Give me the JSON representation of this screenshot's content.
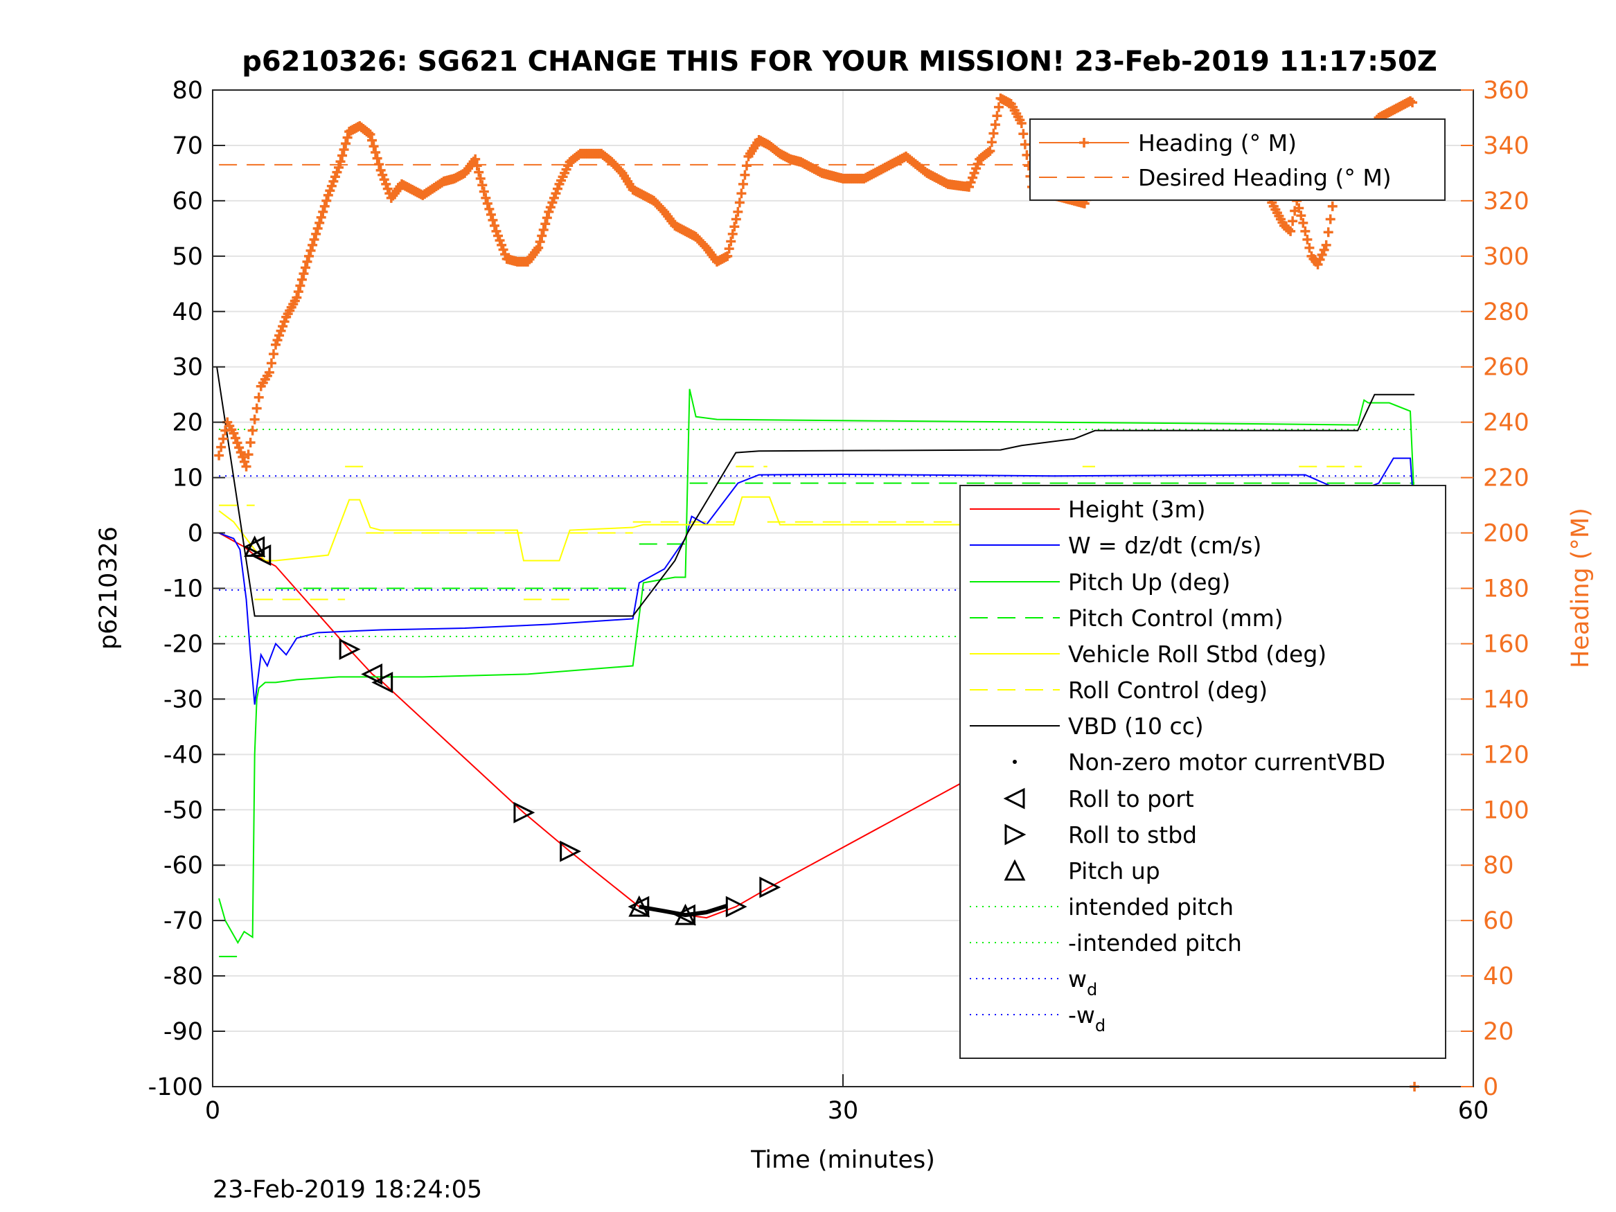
{
  "chart_data": {
    "type": "line",
    "title": "p6210326: SG621 CHANGE THIS FOR YOUR MISSION! 23-Feb-2019 11:17:50Z",
    "footer": "23-Feb-2019 18:24:05",
    "xlabel": "Time (minutes)",
    "ylabel_left": "p6210326",
    "ylabel_right": "Heading (°M)",
    "xlim": [
      0,
      60
    ],
    "ylim_left": [
      -100,
      80
    ],
    "ylim_right": [
      0,
      360
    ],
    "x_ticks": [
      "0",
      "30",
      "60"
    ],
    "y_ticks_left": [
      "80",
      "70",
      "60",
      "50",
      "40",
      "30",
      "20",
      "10",
      "0",
      "-10",
      "-20",
      "-30",
      "-40",
      "-50",
      "-60",
      "-70",
      "-80",
      "-90",
      "-100"
    ],
    "y_ticks_right": [
      "360",
      "340",
      "320",
      "300",
      "280",
      "260",
      "240",
      "220",
      "200",
      "180",
      "160",
      "140",
      "120",
      "100",
      "80",
      "60",
      "40",
      "20",
      "0"
    ],
    "grid": true,
    "colors": {
      "height": "#ff0000",
      "w": "#0000ff",
      "pitch": "#00ee00",
      "roll": "#ffff00",
      "vbd": "#000000",
      "heading": "#f37021",
      "intended": "#00ee00",
      "wd": "#0000ff"
    },
    "legend_heading": {
      "position": "top-right",
      "entries": [
        "Heading (° M)",
        "Desired Heading (° M)"
      ]
    },
    "legend_main": {
      "position": "right",
      "entries": [
        {
          "label": "Height (3m)",
          "style": "red-line"
        },
        {
          "label": "W = dz/dt (cm/s)",
          "style": "blue-line"
        },
        {
          "label": "Pitch Up (deg)",
          "style": "green-line"
        },
        {
          "label": "Pitch Control (mm)",
          "style": "green-dash"
        },
        {
          "label": "Vehicle Roll Stbd (deg)",
          "style": "yellow-line"
        },
        {
          "label": "Roll Control (deg)",
          "style": "yellow-dash"
        },
        {
          "label": "VBD (10 cc)",
          "style": "black-line"
        },
        {
          "label": "Non-zero motor currentVBD",
          "style": "black-dot"
        },
        {
          "label": "Roll to port",
          "style": "tri-left"
        },
        {
          "label": "Roll to stbd",
          "style": "tri-right"
        },
        {
          "label": "Pitch up",
          "style": "tri-up"
        },
        {
          "label": "intended pitch",
          "style": "green-dot"
        },
        {
          "label": "-intended pitch",
          "style": "green-dot"
        },
        {
          "label": "w",
          "sub": "d",
          "style": "blue-dot"
        },
        {
          "label": "-w",
          "sub": "d",
          "style": "blue-dot"
        }
      ]
    },
    "reference_lines": {
      "intended_pitch": 18.7,
      "neg_intended_pitch": -18.7,
      "wd": 10.3,
      "neg_wd": -10.3,
      "desired_heading": 333
    },
    "series": [
      {
        "name": "Height (3m)",
        "axis": "left",
        "x": [
          0.3,
          1.5,
          2.0,
          3.0,
          6.5,
          7.6,
          8.1,
          14.8,
          17.0,
          20.3,
          22.5,
          23.5,
          24.9,
          26.5,
          37.9,
          38.4,
          40.9,
          41.7,
          51.9,
          54.7,
          56.3,
          57.1
        ],
        "y": [
          0,
          -2.5,
          -4,
          -6,
          -21,
          -25.5,
          -27,
          -50.5,
          -57.5,
          -67.5,
          -69,
          -69.5,
          -67.5,
          -64,
          -40.5,
          -38.5,
          -34,
          -31.5,
          -11,
          -5,
          -0.5,
          0
        ]
      },
      {
        "name": "W = dz/dt (cm/s)",
        "axis": "left",
        "x": [
          0.3,
          1.0,
          1.3,
          1.6,
          1.8,
          2.0,
          2.3,
          2.6,
          3.0,
          3.5,
          4.0,
          5.0,
          8.0,
          12.0,
          16.0,
          20.0,
          20.3,
          21.5,
          22.5,
          22.8,
          23.5,
          25.0,
          26.0,
          30.0,
          40.0,
          50.0,
          52.0,
          53.5,
          54.5,
          55.5,
          56.2,
          57.0,
          57.2,
          57.4
        ],
        "y": [
          0,
          -1,
          -3,
          -12,
          -22,
          -31,
          -22,
          -24,
          -20,
          -22,
          -19,
          -18,
          -17.5,
          -17.2,
          -16.5,
          -15.5,
          -9,
          -6.5,
          -1,
          3,
          1.5,
          9,
          10.5,
          10.6,
          10.3,
          10.5,
          10.5,
          8,
          7.5,
          9,
          13.5,
          13.5,
          3,
          0
        ]
      },
      {
        "name": "Pitch Up (deg)",
        "axis": "left",
        "x": [
          0.3,
          0.6,
          0.9,
          1.2,
          1.5,
          1.9,
          2.0,
          2.1,
          2.2,
          2.5,
          3.0,
          4.0,
          6.0,
          10.0,
          15.0,
          20.0,
          20.3,
          20.5,
          22.0,
          22.5,
          22.7,
          23.0,
          24.0,
          30.0,
          40.0,
          50.0,
          54.5,
          54.8,
          55.0,
          56.0,
          57.0,
          57.2,
          57.4
        ],
        "y": [
          -66,
          -70,
          -72,
          -74,
          -72,
          -73,
          -40,
          -30,
          -28,
          -27,
          -27,
          -26.5,
          -26,
          -26,
          -25.5,
          -24,
          -15,
          -9,
          -8,
          -8,
          26,
          21,
          20.5,
          20.3,
          20,
          19.7,
          19.5,
          24,
          23.5,
          23.5,
          22,
          5,
          0
        ]
      },
      {
        "name": "Vehicle Roll Stbd (deg)",
        "axis": "left",
        "x": [
          0.3,
          1.0,
          2.0,
          2.5,
          3.0,
          5.5,
          6.0,
          6.5,
          7.0,
          7.5,
          8.0,
          14.5,
          14.8,
          16.5,
          17.0,
          20.0,
          20.5,
          24.8,
          25.2,
          26.5,
          27.0,
          38.0,
          41.5,
          42.0,
          51.8,
          52.0,
          54.5,
          54.8,
          56.0,
          57.0,
          57.2
        ],
        "y": [
          4,
          2,
          -3,
          -5,
          -5,
          -4,
          1,
          6,
          6,
          1,
          0.5,
          0.5,
          -5,
          -5,
          0.5,
          1,
          1.5,
          1.5,
          6.5,
          6.5,
          1.5,
          1.5,
          2,
          2,
          2,
          6.5,
          6.5,
          2.5,
          2.5,
          2,
          -5
        ]
      },
      {
        "name": "VBD (10 cc)",
        "axis": "left",
        "x": [
          0.2,
          1.8,
          2.0,
          20.0,
          22.0,
          22.6,
          24.9,
          26.0,
          37.5,
          38.5,
          41.0,
          42.0,
          54.5,
          55.3,
          57.2
        ],
        "y": [
          30,
          -10,
          -15,
          -15,
          -5,
          0,
          14.5,
          14.8,
          15,
          15.8,
          17,
          18.5,
          18.5,
          25,
          25
        ]
      },
      {
        "name": "Heading (° M)",
        "axis": "right",
        "x": [
          0.3,
          0.7,
          1.0,
          1.6,
          1.9,
          2.3,
          2.7,
          3.0,
          3.5,
          4.0,
          4.5,
          5.0,
          5.5,
          6.0,
          6.5,
          7.0,
          7.5,
          8.0,
          8.5,
          9.0,
          9.5,
          10.0,
          11.0,
          11.5,
          12.0,
          12.5,
          13.0,
          13.5,
          14.0,
          14.5,
          15.0,
          15.5,
          16.0,
          16.5,
          17.0,
          17.5,
          18.0,
          18.5,
          19.0,
          19.5,
          20.0,
          20.5,
          21.0,
          21.5,
          22.0,
          22.5,
          23.0,
          23.5,
          24.0,
          24.5,
          25.0,
          25.5,
          26.0,
          26.5,
          27.0,
          27.5,
          28.0,
          29.0,
          30.0,
          31.0,
          32.0,
          33.0,
          34.0,
          35.0,
          36.0,
          36.5,
          37.0,
          37.5,
          38.0,
          38.5,
          39.0,
          40.0,
          41.0,
          41.5,
          42.0,
          42.5,
          43.0,
          43.5,
          44.0,
          45.0,
          46.0,
          47.0,
          48.0,
          48.5,
          49.0,
          49.5,
          50.0,
          50.5,
          51.0,
          51.3,
          51.6,
          51.9,
          52.3,
          52.6,
          53.0,
          53.3,
          53.6,
          54.0,
          54.5,
          55.0,
          55.5,
          56.0,
          56.5,
          57.0,
          57.2,
          57.3
        ],
        "y": [
          228,
          240,
          236,
          224,
          237,
          253,
          258,
          268,
          278,
          285,
          298,
          310,
          322,
          332,
          345,
          347,
          344,
          331,
          321,
          326,
          324,
          322,
          327,
          328,
          330,
          335,
          321,
          309,
          299,
          298,
          298,
          303,
          316,
          326,
          334,
          337,
          337,
          337,
          334,
          330,
          324,
          322,
          320,
          316,
          311,
          309,
          307,
          303,
          298,
          300,
          316,
          336,
          342,
          340,
          337,
          335,
          334,
          330,
          328,
          328,
          332,
          336,
          330,
          326,
          325,
          335,
          338,
          357,
          355,
          348,
          325,
          322,
          320,
          319,
          327,
          338,
          342,
          336,
          340,
          339,
          338,
          337,
          333,
          335,
          329,
          324,
          326,
          318,
          311,
          309,
          320,
          312,
          300,
          297,
          304,
          318,
          330,
          337,
          343,
          346,
          350,
          352,
          354,
          356,
          355,
          0
        ]
      }
    ],
    "markers": {
      "roll_to_port": [
        [
          2.0,
          -2.5
        ],
        [
          2.3,
          -4
        ],
        [
          7.6,
          -25.5
        ],
        [
          8.1,
          -27
        ],
        [
          20.3,
          -67.5
        ],
        [
          22.5,
          -69
        ],
        [
          40.9,
          -34
        ],
        [
          41.7,
          -31.5
        ],
        [
          54.7,
          -5
        ],
        [
          56.6,
          -0.5
        ]
      ],
      "roll_to_stbd": [
        [
          6.5,
          -21
        ],
        [
          14.8,
          -50.5
        ],
        [
          17.0,
          -57.5
        ],
        [
          24.9,
          -67.5
        ],
        [
          26.5,
          -64
        ],
        [
          37.9,
          -40.5
        ],
        [
          51.9,
          -11
        ],
        [
          57.1,
          0
        ]
      ],
      "pitch_up": [
        [
          2.0,
          -2.5
        ],
        [
          20.3,
          -67.5
        ],
        [
          22.5,
          -69
        ],
        [
          38.4,
          -38.5
        ],
        [
          54.7,
          -5.5
        ]
      ]
    }
  }
}
